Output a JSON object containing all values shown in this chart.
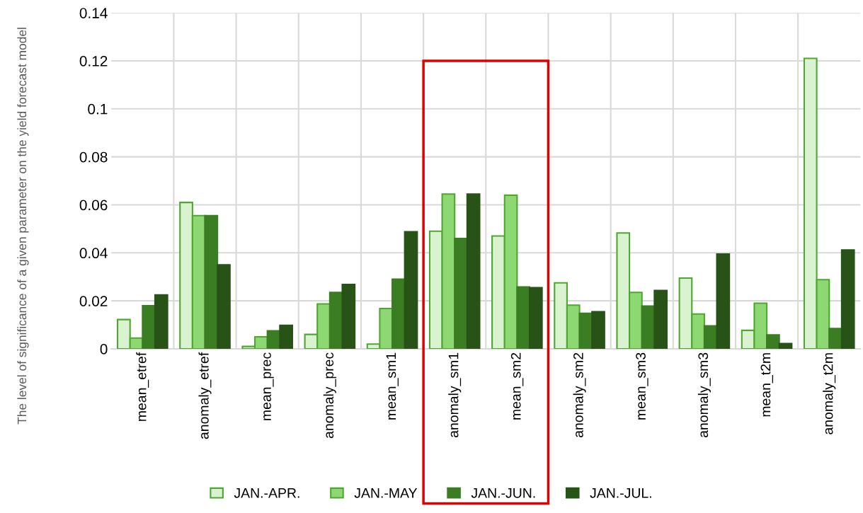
{
  "chart_data": {
    "type": "bar",
    "ylabel": "The level of significance of a given parameter on the yield forecast model",
    "categories": [
      "mean_etref",
      "anomaly_etref",
      "mean_prec",
      "anomaly_prec",
      "mean_sm1",
      "anomaly_sm1",
      "mean_sm2",
      "anomaly_sm2",
      "mean_sm3",
      "anomaly_sm3",
      "mean_t2m",
      "anomaly_t2m"
    ],
    "series": [
      {
        "name": "JAN.-APR.",
        "color": "#d9f2d0",
        "values": [
          0.0122,
          0.061,
          0.001,
          0.006,
          0.002,
          0.049,
          0.047,
          0.0275,
          0.0483,
          0.0295,
          0.0077,
          0.121
        ]
      },
      {
        "name": "JAN.-MAY",
        "color": "#8ed873",
        "values": [
          0.0045,
          0.0555,
          0.005,
          0.0187,
          0.0168,
          0.0645,
          0.064,
          0.0182,
          0.0235,
          0.0145,
          0.019,
          0.0288
        ]
      },
      {
        "name": "JAN.-JUN.",
        "color": "#3b7d23",
        "values": [
          0.018,
          0.0555,
          0.0075,
          0.0235,
          0.029,
          0.046,
          0.0258,
          0.0148,
          0.0178,
          0.0096,
          0.0058,
          0.0085
        ]
      },
      {
        "name": "JAN.-JUL.",
        "color": "#275317",
        "values": [
          0.0225,
          0.035,
          0.0098,
          0.0268,
          0.0488,
          0.0645,
          0.0255,
          0.0155,
          0.0243,
          0.0395,
          0.0022,
          0.0412
        ]
      }
    ],
    "ylim": [
      0,
      0.14
    ],
    "yticks": [
      0,
      0.02,
      0.04,
      0.06,
      0.08,
      0.1,
      0.12,
      0.14
    ],
    "grid": true,
    "legend": "bottom"
  }
}
